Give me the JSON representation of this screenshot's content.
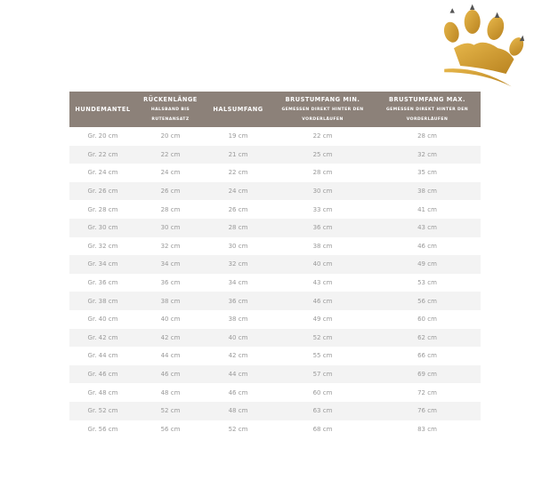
{
  "logo": {
    "icon": "golden-paw-crown-icon",
    "color": "#d4a02e"
  },
  "header_color": "#8c8179",
  "columns": [
    {
      "title": "HUNDEMANTEL",
      "sub": ""
    },
    {
      "title": "RÜCKENLÄNGE",
      "sub": "HALSBAND BIS RUTENANSATZ"
    },
    {
      "title": "HALSUMFANG",
      "sub": ""
    },
    {
      "title": "BRUSTUMFANG MIN.",
      "sub": "GEMESSEN DIREKT HINTER DEN VORDERLÄUFEN"
    },
    {
      "title": "BRUSTUMFANG MAX.",
      "sub": "GEMESSEN DIREKT HINTER DEN VORDERLÄUFEN"
    }
  ],
  "rows": [
    [
      "Gr. 20 cm",
      "20 cm",
      "19 cm",
      "22 cm",
      "28 cm"
    ],
    [
      "Gr. 22 cm",
      "22 cm",
      "21 cm",
      "25 cm",
      "32 cm"
    ],
    [
      "Gr. 24 cm",
      "24 cm",
      "22 cm",
      "28 cm",
      "35 cm"
    ],
    [
      "Gr. 26 cm",
      "26 cm",
      "24 cm",
      "30 cm",
      "38 cm"
    ],
    [
      "Gr. 28 cm",
      "28 cm",
      "26 cm",
      "33 cm",
      "41 cm"
    ],
    [
      "Gr. 30 cm",
      "30 cm",
      "28 cm",
      "36 cm",
      "43 cm"
    ],
    [
      "Gr. 32 cm",
      "32 cm",
      "30 cm",
      "38 cm",
      "46 cm"
    ],
    [
      "Gr. 34 cm",
      "34 cm",
      "32 cm",
      "40 cm",
      "49 cm"
    ],
    [
      "Gr. 36 cm",
      "36 cm",
      "34 cm",
      "43 cm",
      "53 cm"
    ],
    [
      "Gr. 38 cm",
      "38 cm",
      "36 cm",
      "46 cm",
      "56 cm"
    ],
    [
      "Gr. 40 cm",
      "40 cm",
      "38 cm",
      "49 cm",
      "60 cm"
    ],
    [
      "Gr. 42 cm",
      "42 cm",
      "40 cm",
      "52 cm",
      "62 cm"
    ],
    [
      "Gr. 44 cm",
      "44 cm",
      "42 cm",
      "55 cm",
      "66 cm"
    ],
    [
      "Gr. 46 cm",
      "46 cm",
      "44 cm",
      "57 cm",
      "69 cm"
    ],
    [
      "Gr. 48 cm",
      "48 cm",
      "46 cm",
      "60 cm",
      "72 cm"
    ],
    [
      "Gr. 52 cm",
      "52 cm",
      "48 cm",
      "63 cm",
      "76 cm"
    ],
    [
      "Gr. 56 cm",
      "56 cm",
      "52 cm",
      "68 cm",
      "83 cm"
    ]
  ]
}
